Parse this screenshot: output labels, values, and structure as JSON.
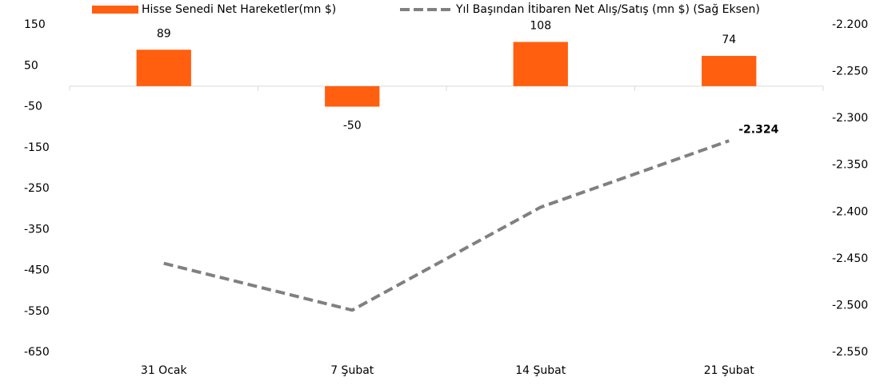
{
  "chart_data": {
    "type": "bar-line",
    "categories": [
      "31 Ocak",
      "7 Şubat",
      "14 Şubat",
      "21 Şubat"
    ],
    "series": [
      {
        "name": "Hisse Senedi Net Hareketler(mn $)",
        "color": "#ff5f0f",
        "type": "bar",
        "values": [
          89,
          -50,
          108,
          74
        ]
      },
      {
        "name": "Yıl Başından İtibaren Net Alış/Satış (mn $) (Sağ Eksen)",
        "color": "#808080",
        "type": "line",
        "axis": "y2",
        "dashed": true,
        "values": [
          -2455,
          -2505,
          -2395,
          -2324
        ],
        "value_labels": [
          null,
          null,
          null,
          "-2.324"
        ]
      }
    ],
    "ylim": [
      -650,
      150
    ],
    "yticks": [
      -650,
      -550,
      -450,
      -350,
      -250,
      -150,
      -50,
      50,
      150
    ],
    "y2lim": [
      -2550,
      -2200
    ],
    "y2ticks": [
      {
        "value": -2550,
        "label": "-2.550"
      },
      {
        "value": -2500,
        "label": "-2.500"
      },
      {
        "value": -2450,
        "label": "-2.450"
      },
      {
        "value": -2400,
        "label": "-2.400"
      },
      {
        "value": -2350,
        "label": "-2.350"
      },
      {
        "value": -2300,
        "label": "-2.300"
      },
      {
        "value": -2250,
        "label": "-2.250"
      },
      {
        "value": -2200,
        "label": "-2.200"
      }
    ],
    "legend": "top",
    "grid": false
  }
}
